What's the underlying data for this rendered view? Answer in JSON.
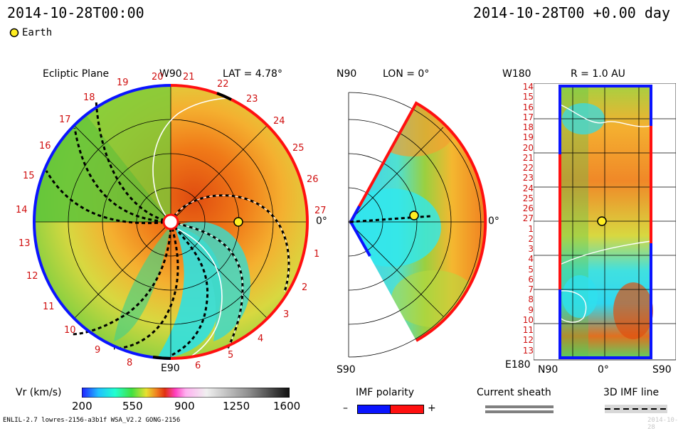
{
  "header": {
    "left_time": "2014-10-28T00:00",
    "right_time": "2014-10-28T00 +0.00 day"
  },
  "legend_top": {
    "earth_label": "Earth"
  },
  "ecliptic_panel": {
    "title": "Ecliptic Plane",
    "w_label": "W90",
    "e_label": "E90",
    "lat_label": "LAT = 4.78°",
    "zero_label": "0°",
    "sector_numbers_blue": [
      "20",
      "19",
      "18",
      "17",
      "16",
      "15",
      "14",
      "13",
      "12",
      "11",
      "10",
      "9",
      "8"
    ],
    "sector_numbers_red": [
      "21",
      "22",
      "23",
      "24",
      "25",
      "26",
      "27",
      "1",
      "2",
      "3",
      "4",
      "5",
      "6"
    ]
  },
  "meridional_panel": {
    "n_label": "N90",
    "s_label": "S90",
    "lon_label": "LON = 0°",
    "zero_label": "0°"
  },
  "radial_panel": {
    "title": "R = 1.0 AU",
    "top_left": "W180",
    "bottom_left": "E180",
    "bottom_labels": [
      "N90",
      "0°",
      "S90"
    ],
    "rows": [
      "14",
      "15",
      "16",
      "17",
      "18",
      "19",
      "20",
      "21",
      "22",
      "23",
      "24",
      "25",
      "26",
      "27",
      "1",
      "2",
      "3",
      "4",
      "5",
      "6",
      "7",
      "8",
      "9",
      "10",
      "11",
      "12",
      "13"
    ]
  },
  "colorbar": {
    "label": "Vr (km/s)",
    "ticks": [
      "200",
      "550",
      "900",
      "1250",
      "1600"
    ]
  },
  "imf_legend": {
    "title": "IMF polarity",
    "minus": "–",
    "plus": "+",
    "colors": {
      "negative": "#0a14ff",
      "positive": "#ff1010"
    }
  },
  "current_sheath": {
    "title": "Current sheath"
  },
  "imf_line": {
    "title": "3D IMF line"
  },
  "footer": {
    "left": "ENLIL-2.7 lowres-2156-a3b1f WSA_V2.2 GONG-2156",
    "right": "2014-10-28"
  }
}
